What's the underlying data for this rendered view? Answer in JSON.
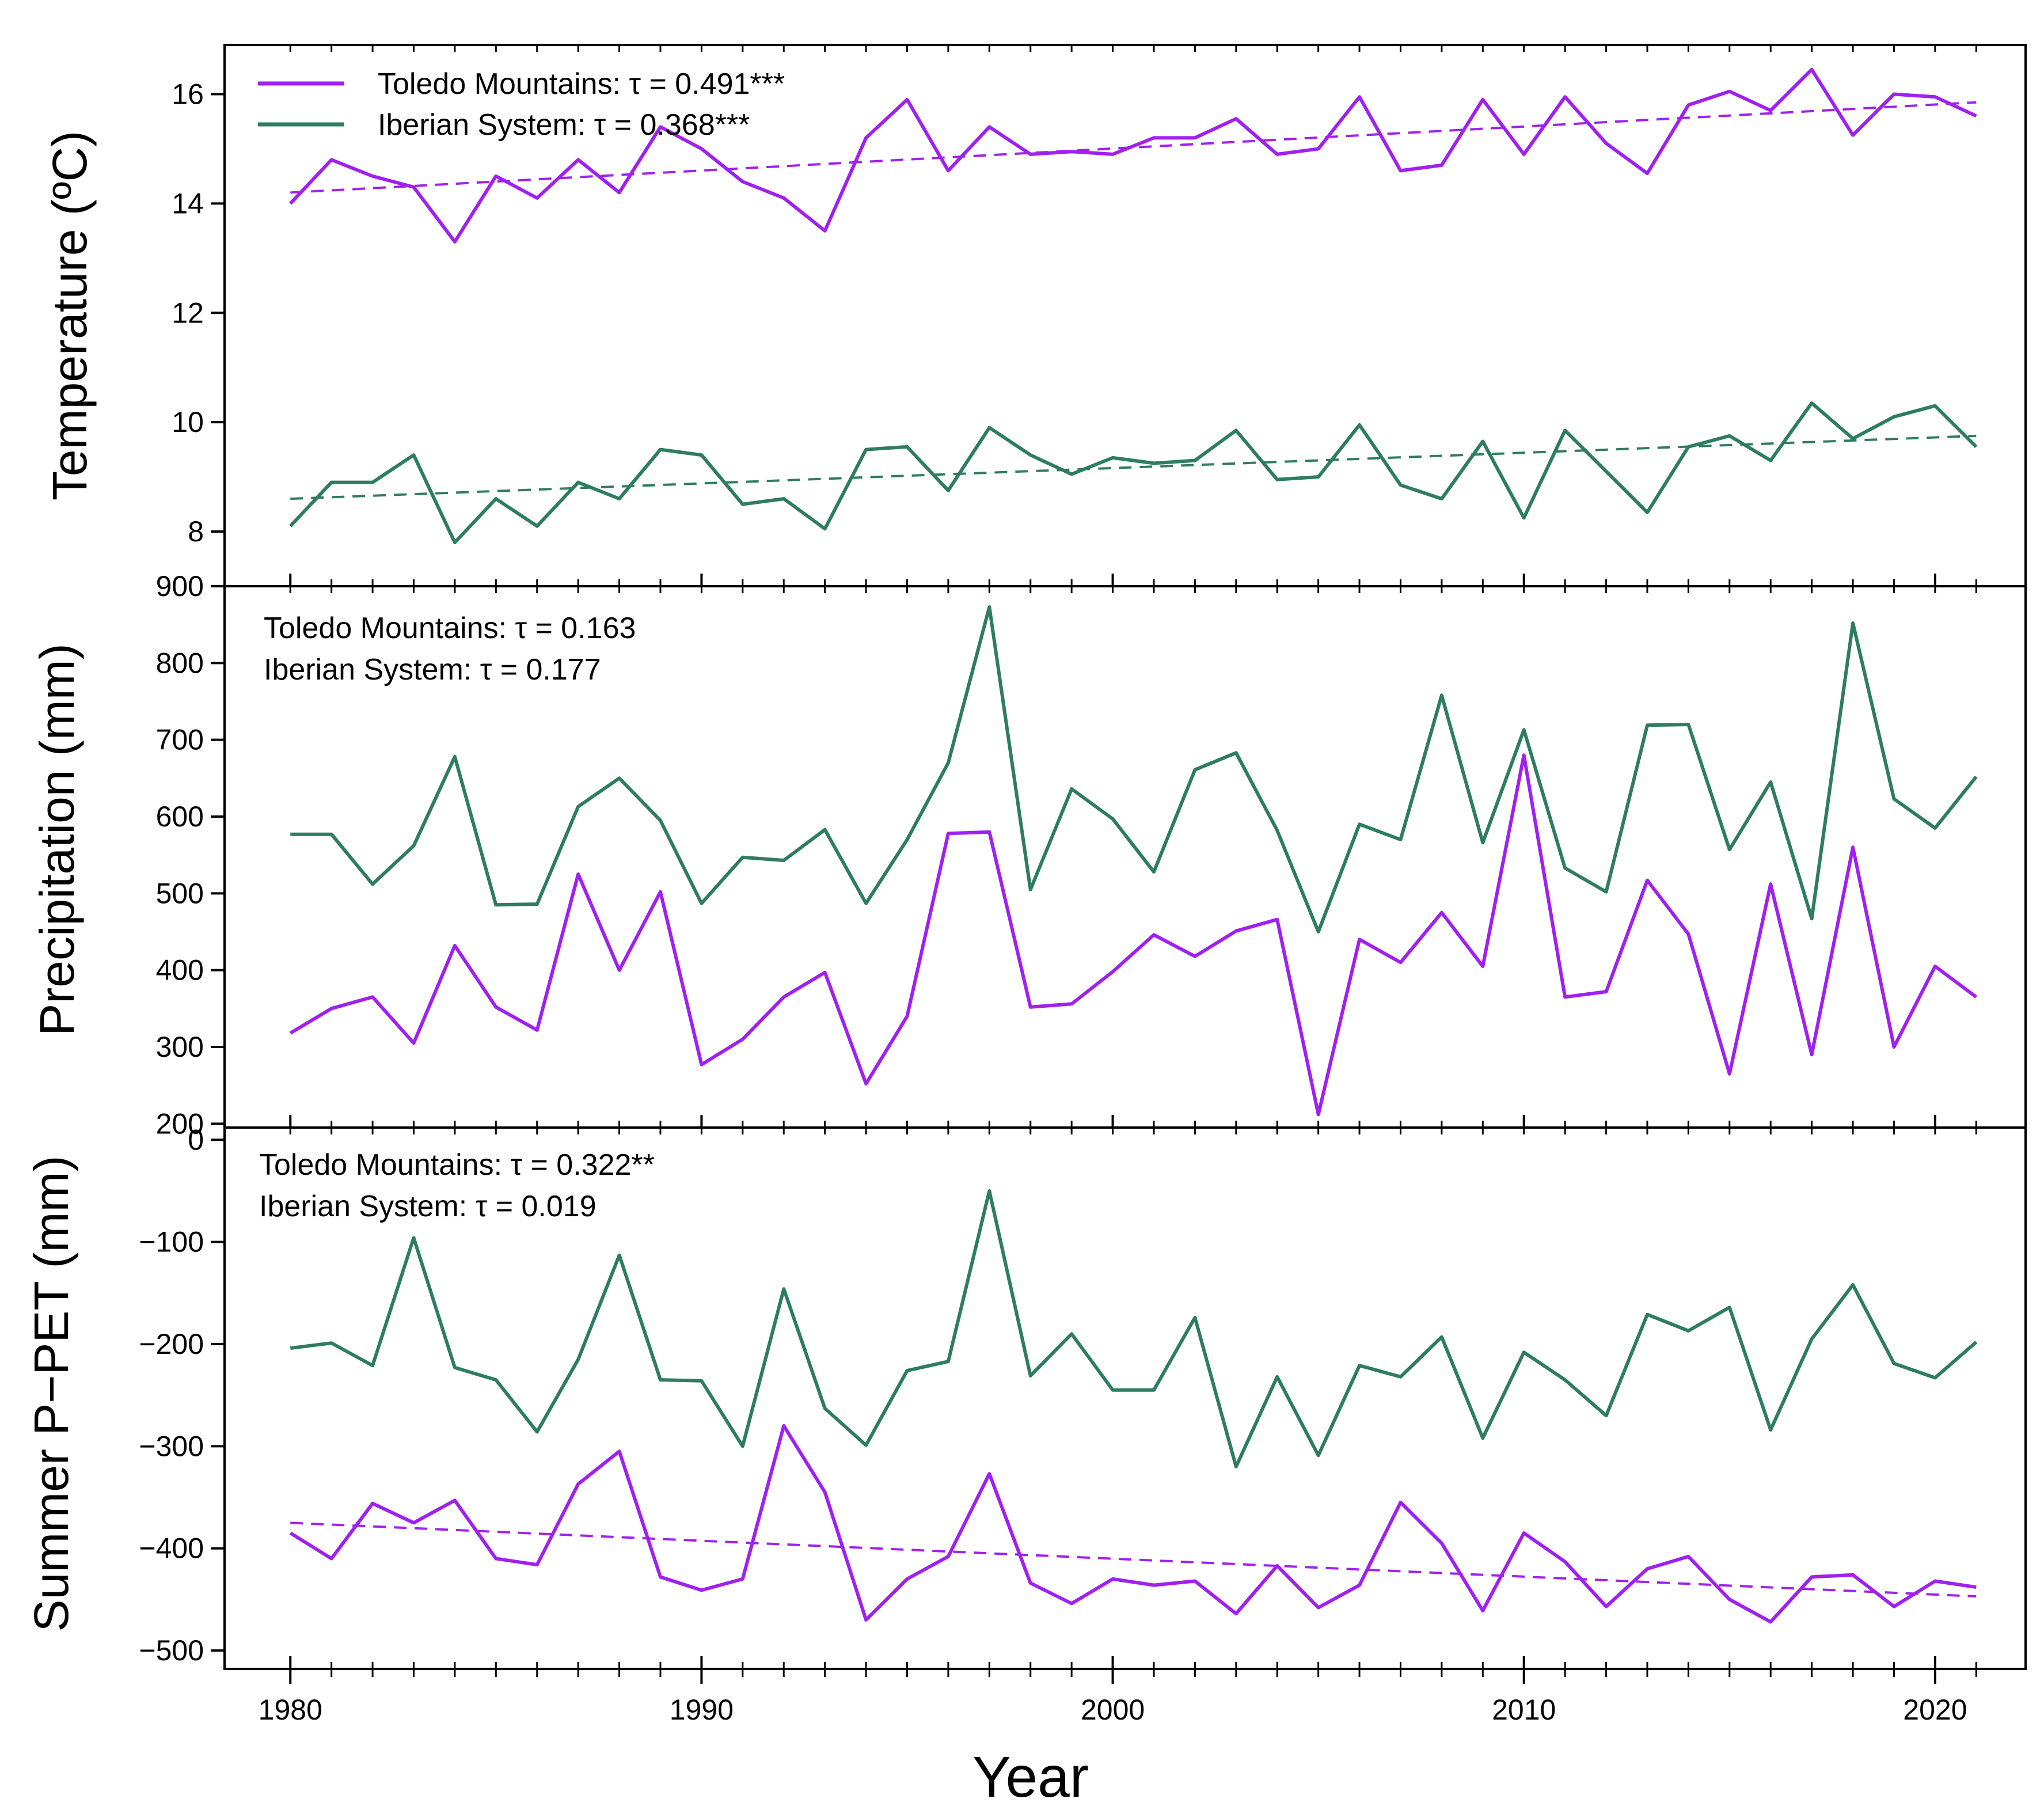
{
  "chart_data": [
    {
      "type": "line",
      "ylabel": "Temperature (ºC)",
      "xlabel": "",
      "ylim": [
        7.0,
        16.9
      ],
      "xlim": [
        1978.4,
        2022.2
      ],
      "yticks": [
        8,
        10,
        12,
        14,
        16
      ],
      "x": [
        1980,
        1981,
        1982,
        1983,
        1984,
        1985,
        1986,
        1987,
        1988,
        1989,
        1990,
        1991,
        1992,
        1993,
        1994,
        1995,
        1996,
        1997,
        1998,
        1999,
        2000,
        2001,
        2002,
        2003,
        2004,
        2005,
        2006,
        2007,
        2008,
        2009,
        2010,
        2011,
        2012,
        2013,
        2014,
        2015,
        2016,
        2017,
        2018,
        2019,
        2020,
        2021
      ],
      "legend": {
        "placement": "top-left"
      },
      "series": [
        {
          "name": "Toledo Mountains: τ = 0.491***",
          "color": "#a020f0",
          "values": [
            14.0,
            14.8,
            14.5,
            14.3,
            13.3,
            14.5,
            14.1,
            14.8,
            14.2,
            15.4,
            15.0,
            14.4,
            14.1,
            13.5,
            15.2,
            15.9,
            14.6,
            15.4,
            14.9,
            14.95,
            14.9,
            15.2,
            15.2,
            15.55,
            14.9,
            15.0,
            15.95,
            14.6,
            14.7,
            15.9,
            14.9,
            15.95,
            15.1,
            14.55,
            15.8,
            16.05,
            15.7,
            16.45,
            15.25,
            16.0,
            15.95,
            15.6
          ],
          "trend": [
            14.2,
            15.85
          ]
        },
        {
          "name": "Iberian System: τ = 0.368***",
          "color": "#2e7d60",
          "values": [
            8.1,
            8.9,
            8.9,
            9.4,
            7.8,
            8.6,
            8.1,
            8.9,
            8.6,
            9.5,
            9.4,
            8.5,
            8.6,
            8.05,
            9.5,
            9.55,
            8.75,
            9.9,
            9.4,
            9.05,
            9.35,
            9.25,
            9.3,
            9.85,
            8.95,
            9.0,
            9.95,
            8.85,
            8.6,
            9.65,
            8.25,
            9.85,
            9.1,
            8.35,
            9.55,
            9.75,
            9.3,
            10.35,
            9.7,
            10.1,
            10.3,
            9.55
          ],
          "trend": [
            8.6,
            9.75
          ]
        }
      ]
    },
    {
      "type": "line",
      "ylabel": "Precipitation (mm)",
      "xlabel": "",
      "ylim": [
        195,
        900
      ],
      "xlim": [
        1978.4,
        2022.2
      ],
      "yticks": [
        200,
        300,
        400,
        500,
        600,
        700,
        800,
        900
      ],
      "x": [
        1980,
        1981,
        1982,
        1983,
        1984,
        1985,
        1986,
        1987,
        1988,
        1989,
        1990,
        1991,
        1992,
        1993,
        1994,
        1995,
        1996,
        1997,
        1998,
        1999,
        2000,
        2001,
        2002,
        2003,
        2004,
        2005,
        2006,
        2007,
        2008,
        2009,
        2010,
        2011,
        2012,
        2013,
        2014,
        2015,
        2016,
        2017,
        2018,
        2019,
        2020,
        2021
      ],
      "annotation": [
        "Toledo Mountains: τ = 0.163",
        "Iberian System: τ = 0.177"
      ],
      "series": [
        {
          "name": "Toledo Mountains",
          "color": "#a020f0",
          "values": [
            318,
            350,
            365,
            305,
            432,
            352,
            322,
            525,
            400,
            502,
            277,
            310,
            365,
            397,
            252,
            340,
            578,
            580,
            352,
            356,
            398,
            446,
            418,
            451,
            466,
            212,
            440,
            410,
            475,
            405,
            680,
            365,
            372,
            517,
            447,
            265,
            512,
            290,
            560,
            300,
            405,
            365
          ]
        },
        {
          "name": "Iberian System",
          "color": "#2e7d60",
          "values": [
            577,
            577,
            512,
            562,
            678,
            485,
            486,
            613,
            650,
            595,
            487,
            547,
            543,
            583,
            487,
            570,
            670,
            873,
            505,
            636,
            597,
            528,
            661,
            683,
            582,
            450,
            590,
            570,
            758,
            566,
            713,
            533,
            502,
            719,
            720,
            557,
            645,
            467,
            852,
            623,
            585,
            652
          ]
        }
      ]
    },
    {
      "type": "line",
      "ylabel": "Summer P−PET (mm)",
      "xlabel": "Year",
      "ylim": [
        -518,
        12
      ],
      "xlim": [
        1978.4,
        2022.2
      ],
      "yticks": [
        0,
        -100,
        -200,
        -300,
        -400,
        -500
      ],
      "ytick_labels": [
        "0",
        "−100",
        "−200",
        "−300",
        "−400",
        "−500"
      ],
      "xticks": [
        1980,
        1990,
        2000,
        2010,
        2020
      ],
      "x": [
        1980,
        1981,
        1982,
        1983,
        1984,
        1985,
        1986,
        1987,
        1988,
        1989,
        1990,
        1991,
        1992,
        1993,
        1994,
        1995,
        1996,
        1997,
        1998,
        1999,
        2000,
        2001,
        2002,
        2003,
        2004,
        2005,
        2006,
        2007,
        2008,
        2009,
        2010,
        2011,
        2012,
        2013,
        2014,
        2015,
        2016,
        2017,
        2018,
        2019,
        2020,
        2021
      ],
      "annotation": [
        "Toledo Mountains: τ = 0.322**",
        "Iberian System: τ = 0.019"
      ],
      "series": [
        {
          "name": "Toledo Mountains",
          "color": "#a020f0",
          "values": [
            -385,
            -410,
            -356,
            -375,
            -353,
            -410,
            -416,
            -337,
            -305,
            -428,
            -441,
            -430,
            -280,
            -345,
            -470,
            -430,
            -408,
            -327,
            -434,
            -454,
            -430,
            -436,
            -432,
            -464,
            -417,
            -458,
            -436,
            -355,
            -395,
            -461,
            -385,
            -413,
            -457,
            -420,
            -408,
            -450,
            -472,
            -428,
            -426,
            -457,
            -432,
            -438
          ],
          "trend": [
            -375,
            -447
          ]
        },
        {
          "name": "Iberian System",
          "color": "#2e7d60",
          "values": [
            -204,
            -199,
            -221,
            -96,
            -223,
            -235,
            -286,
            -215,
            -113,
            -235,
            -236,
            -300,
            -146,
            -263,
            -299,
            -226,
            -217,
            -50,
            -231,
            -190,
            -245,
            -245,
            -174,
            -320,
            -232,
            -309,
            -221,
            -232,
            -193,
            -292,
            -208,
            -235,
            -270,
            -171,
            -187,
            -164,
            -284,
            -195,
            -142,
            -219,
            -233,
            -198
          ]
        }
      ]
    }
  ]
}
